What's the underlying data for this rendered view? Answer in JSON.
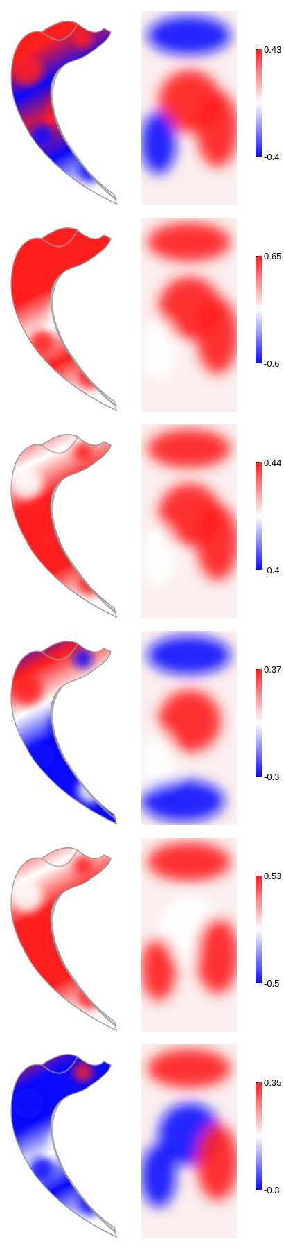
{
  "colors": {
    "positive": "#ff1f1f",
    "neutral": "#ffffff",
    "negative": "#0a0aff",
    "edge": "#9a9a9a"
  },
  "panels": [
    {
      "max_label": "0.43",
      "min_label": "-0.4",
      "surface_pattern": [
        "red",
        "red",
        "blue",
        "red",
        "blue",
        "white"
      ],
      "map_pattern": [
        "blue-top",
        "red-center",
        "blue-left",
        "red-right"
      ]
    },
    {
      "max_label": "0.65",
      "min_label": "-0.6",
      "surface_pattern": [
        "red",
        "red",
        "red",
        "white",
        "red",
        "white"
      ],
      "map_pattern": [
        "red-top",
        "red-center",
        "white-left",
        "red-right"
      ]
    },
    {
      "max_label": "0.44",
      "min_label": "-0.4",
      "surface_pattern": [
        "red",
        "white",
        "red",
        "red",
        "red",
        "white"
      ],
      "map_pattern": [
        "red-top",
        "red-center",
        "white-left",
        "red-right"
      ]
    },
    {
      "max_label": "0.37",
      "min_label": "-0.3",
      "surface_pattern": [
        "blue",
        "red",
        "white",
        "blue",
        "blue",
        "blue"
      ],
      "map_pattern": [
        "blue-top",
        "red-center",
        "white-left",
        "blue-bottom"
      ]
    },
    {
      "max_label": "0.53",
      "min_label": "-0.5",
      "surface_pattern": [
        "red",
        "white",
        "red",
        "red",
        "red",
        "white"
      ],
      "map_pattern": [
        "red-top",
        "white-center",
        "red-left",
        "red-right"
      ]
    },
    {
      "max_label": "0.35",
      "min_label": "-0.3",
      "surface_pattern": [
        "red",
        "blue",
        "blue",
        "white",
        "blue",
        "white"
      ],
      "map_pattern": [
        "red-top",
        "blue-center",
        "blue-left",
        "red-right"
      ]
    }
  ]
}
